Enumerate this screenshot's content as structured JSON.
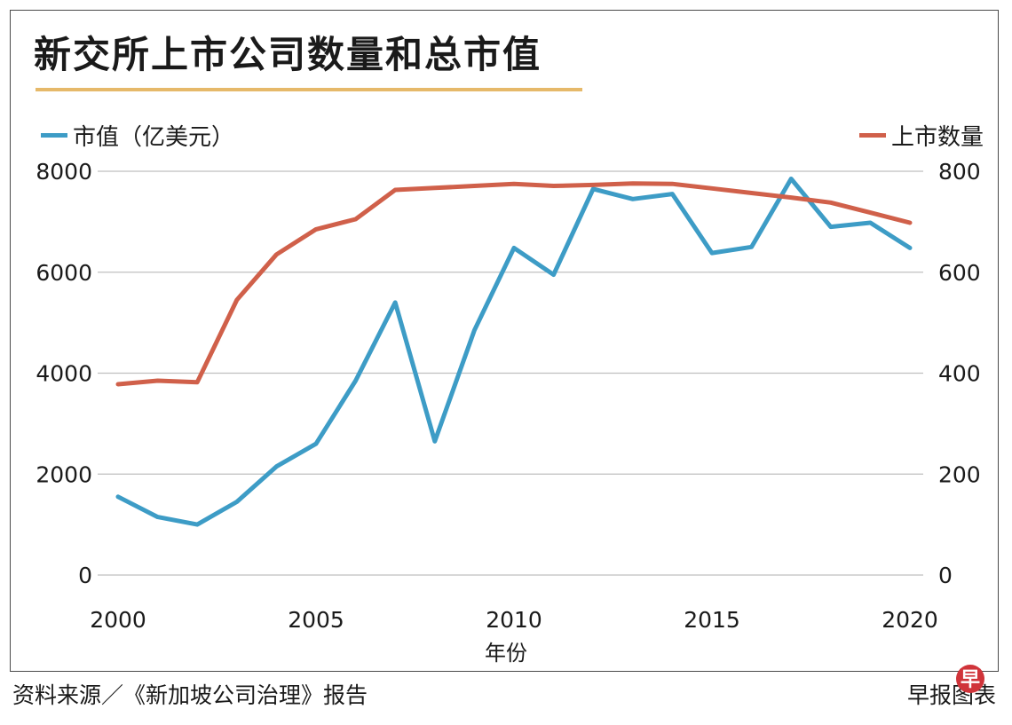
{
  "title": "新交所上市公司数量和总市值",
  "source": "资料来源／《新加坡公司治理》报告",
  "credit": "早报图表",
  "logo_text": "早",
  "colors": {
    "market_cap": "#3d9cc6",
    "listings": "#d0604a",
    "title_rule": "#e6b96a",
    "grid": "#bfbfbf"
  },
  "chart_data": {
    "type": "line",
    "title": "新交所上市公司数量和总市值",
    "xlabel": "年份",
    "xticks": [
      2000,
      2005,
      2010,
      2015,
      2020
    ],
    "xlim": [
      2000,
      2020
    ],
    "grid": true,
    "legend_placement": "top-left and top-right",
    "y_left": {
      "label": "",
      "lim": [
        0,
        8000
      ],
      "ticks": [
        "0",
        "2000",
        "4000",
        "6000",
        "8000"
      ]
    },
    "y_right": {
      "label": "",
      "lim": [
        0,
        800
      ],
      "ticks": [
        "0",
        "200",
        "400",
        "600",
        "800"
      ]
    },
    "x": [
      2000,
      2001,
      2002,
      2003,
      2004,
      2005,
      2006,
      2007,
      2008,
      2009,
      2010,
      2011,
      2012,
      2013,
      2014,
      2015,
      2016,
      2017,
      2018,
      2019,
      2020
    ],
    "series": [
      {
        "name": "市值（亿美元）",
        "axis": "left",
        "color": "#3d9cc6",
        "values": [
          1550,
          1150,
          1000,
          1450,
          2150,
          2600,
          3850,
          5400,
          2650,
          4850,
          6480,
          5950,
          7650,
          7450,
          7550,
          6380,
          6500,
          7850,
          6900,
          6980,
          6480
        ]
      },
      {
        "name": "上市数量",
        "axis": "right",
        "color": "#d0604a",
        "values": [
          378,
          385,
          382,
          545,
          635,
          685,
          705,
          763,
          767,
          771,
          775,
          771,
          773,
          776,
          775,
          766,
          757,
          748,
          738,
          718,
          698
        ]
      }
    ]
  }
}
